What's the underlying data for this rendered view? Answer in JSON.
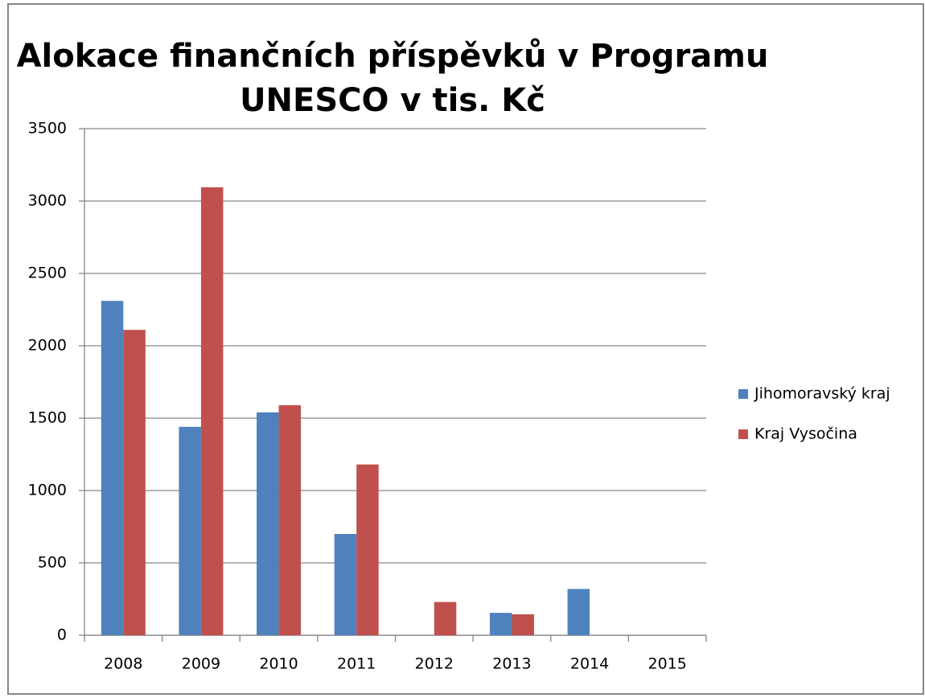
{
  "chart_data": {
    "type": "bar",
    "title": [
      "Alokace finančních příspěvků v Programu",
      "UNESCO v tis. Kč"
    ],
    "categories": [
      "2008",
      "2009",
      "2010",
      "2011",
      "2012",
      "2013",
      "2014",
      "2015"
    ],
    "series": [
      {
        "name": "Jihomoravský kraj",
        "color": "#4f81bd",
        "values": [
          2310,
          1440,
          1540,
          700,
          0,
          155,
          320,
          0
        ]
      },
      {
        "name": "Kraj Vysočina",
        "color": "#c0504d",
        "values": [
          2110,
          3095,
          1590,
          1180,
          230,
          145,
          0,
          0
        ]
      }
    ],
    "ylim": [
      0,
      3500
    ],
    "yticks": [
      0,
      500,
      1000,
      1500,
      2000,
      2500,
      3000,
      3500
    ],
    "grid": true,
    "legend": "right"
  }
}
